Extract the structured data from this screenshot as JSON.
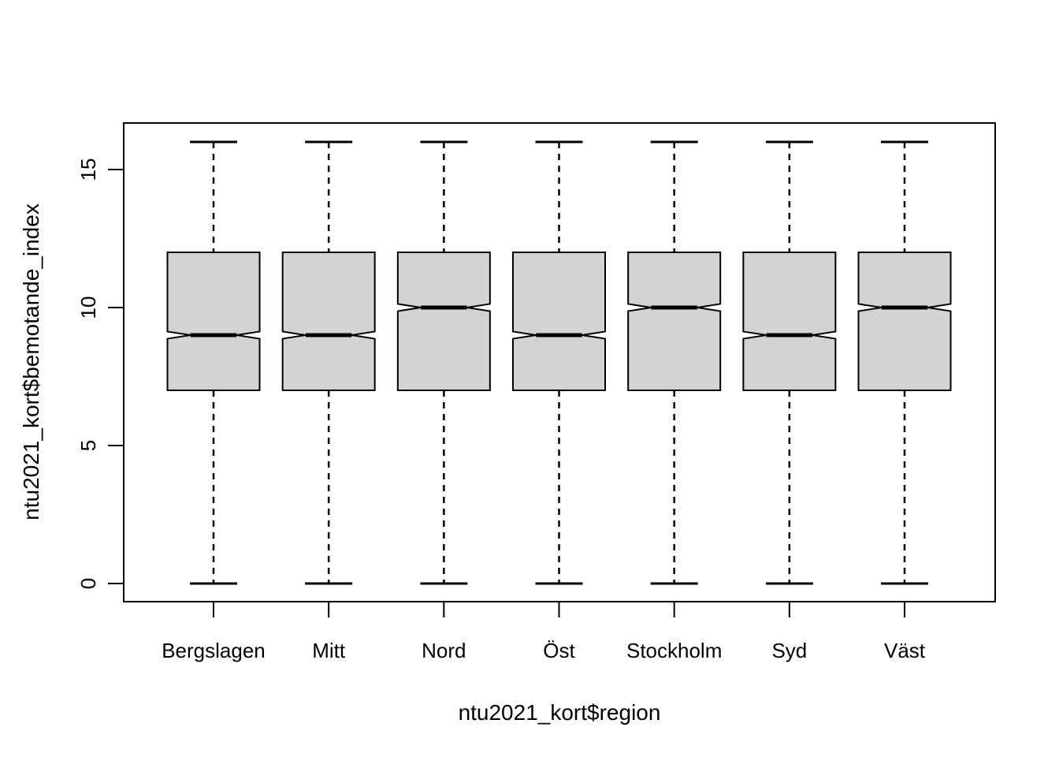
{
  "figure": {
    "background": "#ffffff"
  },
  "chart_data": {
    "type": "boxplot",
    "title": "",
    "xlabel": "ntu2021_kort$region",
    "ylabel": "ntu2021_kort$bemotande_index",
    "categories": [
      "Bergslagen",
      "Mitt",
      "Nord",
      "Öst",
      "Stockholm",
      "Syd",
      "Väst"
    ],
    "boxes": [
      {
        "category": "Bergslagen",
        "whisker_low": 0,
        "q1": 7,
        "median": 9,
        "q3": 12,
        "whisker_high": 16,
        "notch_low": 8.87,
        "notch_high": 9.13
      },
      {
        "category": "Mitt",
        "whisker_low": 0,
        "q1": 7,
        "median": 9,
        "q3": 12,
        "whisker_high": 16,
        "notch_low": 8.87,
        "notch_high": 9.13
      },
      {
        "category": "Nord",
        "whisker_low": 0,
        "q1": 7,
        "median": 10,
        "q3": 12,
        "whisker_high": 16,
        "notch_low": 9.87,
        "notch_high": 10.13
      },
      {
        "category": "Öst",
        "whisker_low": 0,
        "q1": 7,
        "median": 9,
        "q3": 12,
        "whisker_high": 16,
        "notch_low": 8.87,
        "notch_high": 9.13
      },
      {
        "category": "Stockholm",
        "whisker_low": 0,
        "q1": 7,
        "median": 10,
        "q3": 12,
        "whisker_high": 16,
        "notch_low": 9.87,
        "notch_high": 10.13
      },
      {
        "category": "Syd",
        "whisker_low": 0,
        "q1": 7,
        "median": 9,
        "q3": 12,
        "whisker_high": 16,
        "notch_low": 8.87,
        "notch_high": 9.13
      },
      {
        "category": "Väst",
        "whisker_low": 0,
        "q1": 7,
        "median": 10,
        "q3": 12,
        "whisker_high": 16,
        "notch_low": 9.87,
        "notch_high": 10.13
      }
    ],
    "ylim": [
      0,
      16
    ],
    "yticks": [
      0,
      5,
      10,
      15
    ],
    "notched": true,
    "grid": false,
    "legend": null,
    "box_fill": "#d3d3d3",
    "line_color": "#000000"
  }
}
